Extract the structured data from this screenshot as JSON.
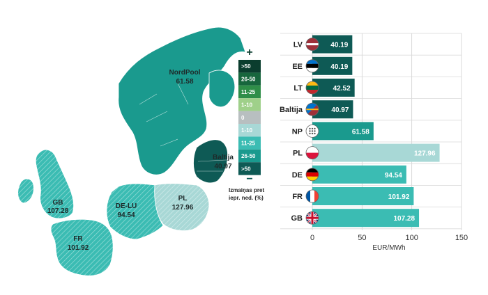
{
  "map": {
    "regions": [
      {
        "id": "nordpool",
        "label": "NordPool",
        "value": "61.58",
        "color": "#1a9a8e"
      },
      {
        "id": "baltija",
        "label": "Baltija",
        "value": "40.97",
        "color": "#0e5a55"
      },
      {
        "id": "pl",
        "label": "PL",
        "value": "127.96",
        "color": "#a8d8d6"
      },
      {
        "id": "de-lu",
        "label": "DE-LU",
        "value": "94.54",
        "color": "#3bbcb3"
      },
      {
        "id": "gb",
        "label": "GB",
        "value": "107.28",
        "color": "#3bbcb3"
      },
      {
        "id": "fr",
        "label": "FR",
        "value": "101.92",
        "color": "#3bbcb3"
      }
    ]
  },
  "legend": {
    "plus": "+",
    "minus": "−",
    "caption_line1": "Izmaiņas pret",
    "caption_line2": "iepr. ned. (%)",
    "items": [
      {
        "label": ">50",
        "color": "#0b3d2e"
      },
      {
        "label": "26-50",
        "color": "#17663d"
      },
      {
        "label": "11-25",
        "color": "#2f8e48"
      },
      {
        "label": "1-10",
        "color": "#9fd08a"
      },
      {
        "label": "0",
        "color": "#b8bfc0"
      },
      {
        "label": "1-10",
        "color": "#a8d8d6"
      },
      {
        "label": "11-25",
        "color": "#3bbcb3"
      },
      {
        "label": "26-50",
        "color": "#1a9a8e"
      },
      {
        "label": ">50",
        "color": "#0e5a55"
      }
    ]
  },
  "chart_data": {
    "type": "bar",
    "orientation": "horizontal",
    "categories": [
      "LV",
      "EE",
      "LT",
      "Baltija",
      "NP",
      "PL",
      "DE",
      "FR",
      "GB"
    ],
    "values": [
      40.19,
      40.19,
      42.52,
      40.97,
      61.58,
      127.96,
      94.54,
      101.92,
      107.28
    ],
    "value_labels": [
      "40.19",
      "40.19",
      "42.52",
      "40.97",
      "61.58",
      "127.96",
      "94.54",
      "101.92",
      "107.28"
    ],
    "bar_colors": [
      "#0e5a55",
      "#0e5a55",
      "#0e5a55",
      "#0e5a55",
      "#1a9a8e",
      "#a8d8d6",
      "#3bbcb3",
      "#3bbcb3",
      "#3bbcb3"
    ],
    "flags": [
      "flag-latvia",
      "flag-estonia",
      "flag-lithuania",
      "flag-baltics",
      "flag-nordpool",
      "flag-poland",
      "flag-germany",
      "flag-france",
      "flag-uk"
    ],
    "x_ticks": [
      "0",
      "50",
      "100",
      "150"
    ],
    "xlabel": "EUR/MWh",
    "xlim": [
      0,
      150
    ],
    "grid": true
  }
}
